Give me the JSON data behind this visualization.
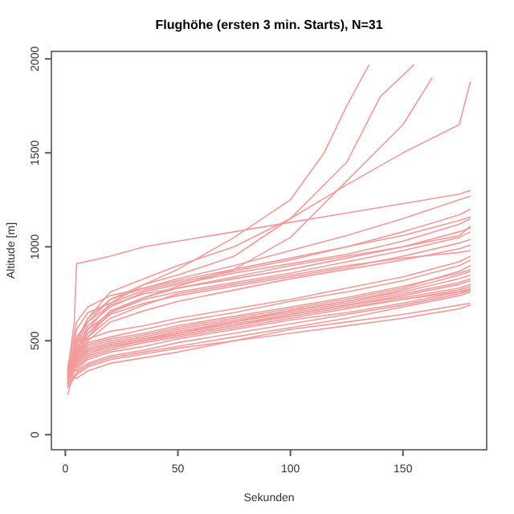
{
  "chart_data": {
    "type": "line",
    "title": "Flughöhe (ersten 3 min. Starts), N=31",
    "xlabel": "Sekunden",
    "ylabel": "Altitude [m]",
    "xlim": [
      -6.2,
      187.2
    ],
    "ylim": [
      -80,
      2040
    ],
    "xticks": [
      0,
      50,
      100,
      150
    ],
    "yticks": [
      0,
      500,
      1000,
      1500,
      2000
    ],
    "grid": false,
    "line_style": "solid",
    "marker": "none",
    "x": [
      1,
      5,
      10,
      20,
      35,
      50,
      75,
      100,
      125,
      150,
      175,
      180
    ],
    "series": [
      {
        "color": "#f39a9a",
        "x": [
          1,
          5,
          10,
          20,
          35,
          50,
          75,
          100,
          115,
          125,
          135
        ],
        "values": [
          310,
          450,
          560,
          700,
          800,
          880,
          1050,
          1250,
          1500,
          1750,
          1970
        ]
      },
      {
        "color": "#f39a9a",
        "x": [
          1,
          5,
          10,
          20,
          35,
          50,
          75,
          100,
          125,
          140,
          155
        ],
        "values": [
          330,
          480,
          600,
          720,
          800,
          850,
          950,
          1150,
          1450,
          1800,
          1970
        ]
      },
      {
        "color": "#f39a9a",
        "x": [
          1,
          5,
          10,
          20,
          35,
          50,
          75,
          100,
          125,
          150,
          163
        ],
        "values": [
          300,
          420,
          520,
          650,
          730,
          790,
          880,
          1050,
          1350,
          1650,
          1900
        ]
      },
      {
        "color": "#f39a9a",
        "values": [
          320,
          500,
          620,
          760,
          830,
          900,
          1000,
          1150,
          1330,
          1500,
          1650,
          1880
        ]
      },
      {
        "color": "#f39a9a",
        "x": [
          1,
          4,
          5,
          20,
          35,
          50,
          75,
          100,
          125,
          150,
          175,
          180
        ],
        "values": [
          330,
          600,
          910,
          950,
          1000,
          1030,
          1080,
          1130,
          1180,
          1230,
          1280,
          1300
        ]
      },
      {
        "color": "#f39a9a",
        "values": [
          300,
          500,
          620,
          720,
          780,
          830,
          900,
          980,
          1060,
          1150,
          1250,
          1270
        ]
      },
      {
        "color": "#f39a9a",
        "values": [
          320,
          560,
          650,
          700,
          770,
          810,
          870,
          930,
          1000,
          1080,
          1170,
          1200
        ]
      },
      {
        "color": "#f39a9a",
        "values": [
          280,
          450,
          580,
          680,
          760,
          800,
          860,
          910,
          960,
          1030,
          1120,
          1150
        ]
      },
      {
        "color": "#f39a9a",
        "values": [
          340,
          520,
          600,
          690,
          750,
          780,
          830,
          880,
          940,
          1000,
          1080,
          1100
        ]
      },
      {
        "color": "#f39a9a",
        "values": [
          300,
          480,
          560,
          650,
          720,
          760,
          810,
          860,
          920,
          980,
          1050,
          1080
        ]
      },
      {
        "color": "#f39a9a",
        "values": [
          310,
          430,
          540,
          640,
          700,
          740,
          790,
          840,
          890,
          950,
          1020,
          1040
        ]
      },
      {
        "color": "#f39a9a",
        "values": [
          290,
          410,
          500,
          600,
          660,
          710,
          770,
          830,
          880,
          930,
          990,
          1010
        ]
      },
      {
        "color": "#f39a9a",
        "values": [
          330,
          470,
          520,
          620,
          690,
          750,
          800,
          850,
          900,
          940,
          970,
          980
        ]
      },
      {
        "color": "#f39a9a",
        "values": [
          350,
          600,
          680,
          740,
          780,
          820,
          880,
          940,
          1000,
          1060,
          1140,
          1160
        ]
      },
      {
        "color": "#f39a9a",
        "values": [
          270,
          460,
          540,
          660,
          730,
          780,
          840,
          900,
          950,
          1000,
          1060,
          1110
        ]
      },
      {
        "color": "#f39a9a",
        "values": [
          320,
          380,
          430,
          470,
          500,
          530,
          580,
          640,
          690,
          740,
          800,
          820
        ]
      },
      {
        "color": "#f39a9a",
        "values": [
          380,
          390,
          450,
          480,
          510,
          550,
          600,
          650,
          700,
          750,
          810,
          830
        ]
      },
      {
        "color": "#f39a9a",
        "values": [
          280,
          400,
          460,
          490,
          520,
          560,
          610,
          660,
          710,
          760,
          830,
          850
        ]
      },
      {
        "color": "#f39a9a",
        "values": [
          360,
          360,
          410,
          450,
          490,
          520,
          570,
          620,
          670,
          720,
          770,
          790
        ]
      },
      {
        "color": "#f39a9a",
        "values": [
          300,
          350,
          400,
          440,
          470,
          510,
          560,
          610,
          650,
          700,
          760,
          780
        ]
      },
      {
        "color": "#f39a9a",
        "values": [
          270,
          420,
          480,
          510,
          540,
          580,
          630,
          680,
          730,
          790,
          860,
          880
        ]
      },
      {
        "color": "#f39a9a",
        "values": [
          350,
          410,
          470,
          500,
          530,
          570,
          620,
          670,
          720,
          780,
          870,
          900
        ]
      },
      {
        "color": "#f39a9a",
        "values": [
          290,
          440,
          490,
          520,
          560,
          600,
          650,
          710,
          760,
          820,
          900,
          930
        ]
      },
      {
        "color": "#f39a9a",
        "values": [
          340,
          340,
          380,
          420,
          450,
          490,
          540,
          590,
          640,
          690,
          750,
          770
        ]
      },
      {
        "color": "#f39a9a",
        "values": [
          260,
          330,
          370,
          410,
          440,
          470,
          520,
          570,
          620,
          680,
          740,
          760
        ]
      },
      {
        "color": "#f39a9a",
        "values": [
          250,
          400,
          450,
          480,
          510,
          540,
          590,
          640,
          690,
          730,
          780,
          800
        ]
      },
      {
        "color": "#f39a9a",
        "values": [
          320,
          300,
          340,
          380,
          410,
          440,
          500,
          560,
          600,
          640,
          690,
          700
        ]
      },
      {
        "color": "#f39a9a",
        "values": [
          340,
          370,
          420,
          460,
          500,
          540,
          600,
          660,
          710,
          770,
          850,
          870
        ]
      },
      {
        "color": "#f39a9a",
        "values": [
          360,
          450,
          510,
          550,
          580,
          620,
          670,
          720,
          780,
          840,
          920,
          950
        ]
      },
      {
        "color": "#f39a9a",
        "values": [
          210,
          390,
          440,
          470,
          500,
          530,
          580,
          630,
          680,
          720,
          760,
          770
        ]
      },
      {
        "color": "#f39a9a",
        "values": [
          250,
          320,
          360,
          400,
          430,
          460,
          500,
          540,
          580,
          620,
          670,
          690
        ]
      }
    ]
  }
}
